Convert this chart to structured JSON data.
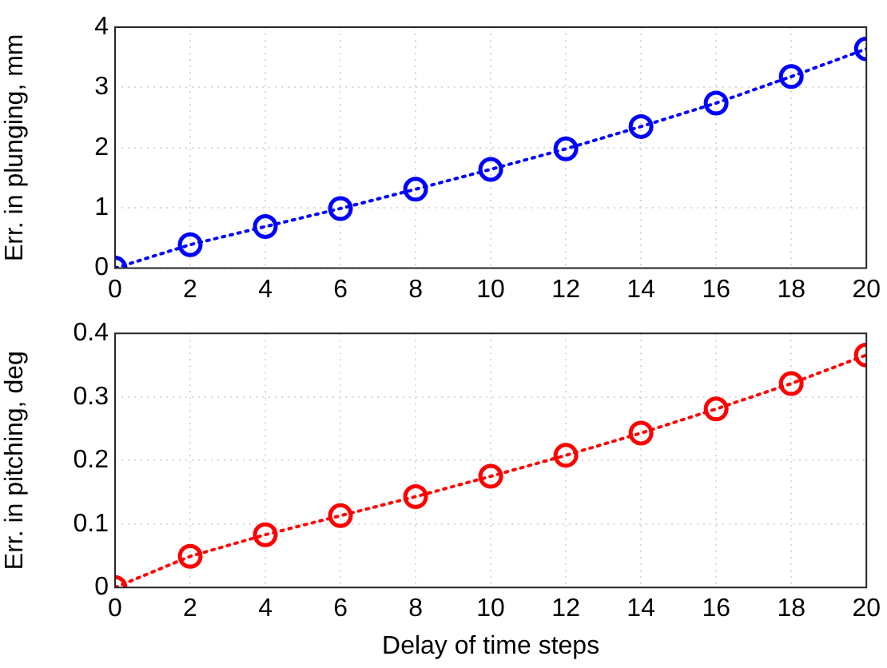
{
  "chart_data": [
    {
      "type": "line",
      "ylabel": "Err. in plunging, mm",
      "x": [
        0,
        2,
        4,
        6,
        8,
        10,
        12,
        14,
        16,
        18,
        20
      ],
      "series": [
        {
          "color": "#0000ff",
          "values": [
            0,
            0.39,
            0.69,
            0.99,
            1.31,
            1.64,
            1.98,
            2.35,
            2.74,
            3.18,
            3.64
          ]
        }
      ],
      "xlim": [
        0,
        20
      ],
      "xticks": [
        0,
        2,
        4,
        6,
        8,
        10,
        12,
        14,
        16,
        18,
        20
      ],
      "ylim": [
        0,
        4
      ],
      "yticks": [
        0,
        1,
        2,
        3,
        4
      ],
      "grid": true,
      "legend": false,
      "marker": "circle",
      "line_style": "dotted"
    },
    {
      "type": "line",
      "xlabel": "Delay of time steps",
      "ylabel": "Err. in pitching, deg",
      "x": [
        0,
        2,
        4,
        6,
        8,
        10,
        12,
        14,
        16,
        18,
        20
      ],
      "series": [
        {
          "color": "#ff0000",
          "values": [
            0,
            0.049,
            0.083,
            0.113,
            0.143,
            0.175,
            0.208,
            0.243,
            0.281,
            0.321,
            0.366
          ]
        }
      ],
      "xlim": [
        0,
        20
      ],
      "xticks": [
        0,
        2,
        4,
        6,
        8,
        10,
        12,
        14,
        16,
        18,
        20
      ],
      "ylim": [
        0,
        0.4
      ],
      "yticks": [
        0,
        0.1,
        0.2,
        0.3,
        0.4
      ],
      "grid": true,
      "legend": false,
      "marker": "circle",
      "line_style": "dotted"
    }
  ]
}
